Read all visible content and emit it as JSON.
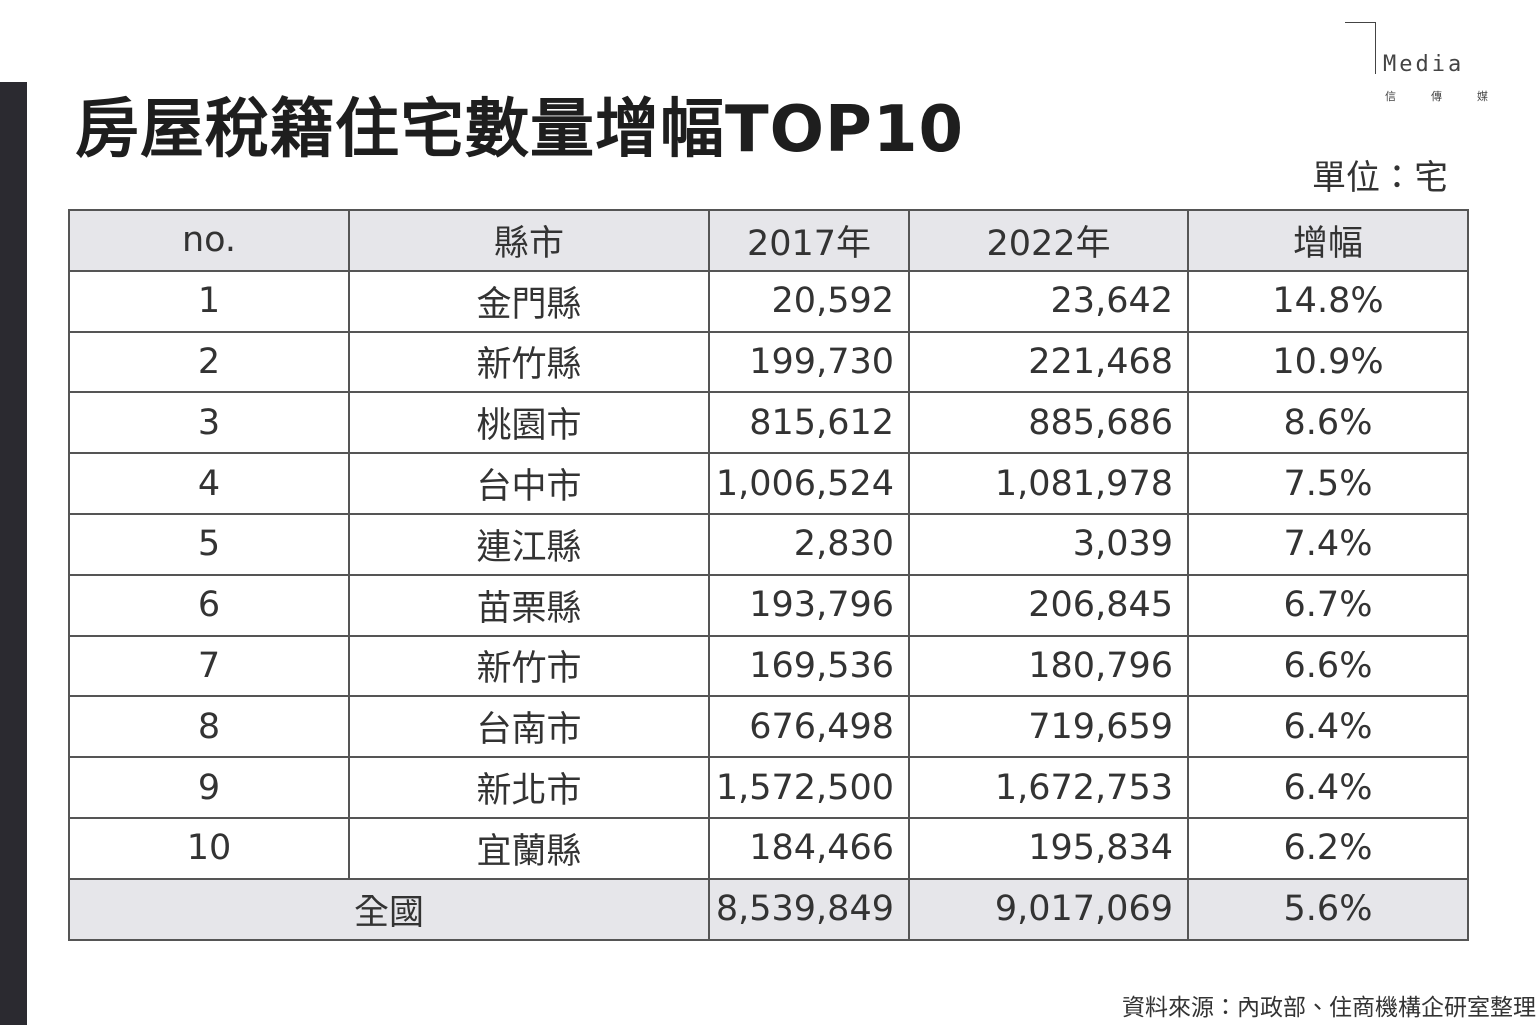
{
  "header": {
    "title": "房屋稅籍住宅數量增幅TOP10",
    "unit": "單位：宅",
    "logo": {
      "mark": "Media",
      "sub": "信傳媒"
    }
  },
  "table": {
    "columns": [
      "no.",
      "縣市",
      "2017年",
      "2022年",
      "增幅"
    ],
    "rows": [
      [
        "1",
        "金門縣",
        "20,592",
        "23,642",
        "14.8%"
      ],
      [
        "2",
        "新竹縣",
        "199,730",
        "221,468",
        "10.9%"
      ],
      [
        "3",
        "桃園市",
        "815,612",
        "885,686",
        "8.6%"
      ],
      [
        "4",
        "台中市",
        "1,006,524",
        "1,081,978",
        "7.5%"
      ],
      [
        "5",
        "連江縣",
        "2,830",
        "3,039",
        "7.4%"
      ],
      [
        "6",
        "苗栗縣",
        "193,796",
        "206,845",
        "6.7%"
      ],
      [
        "7",
        "新竹市",
        "169,536",
        "180,796",
        "6.6%"
      ],
      [
        "8",
        "台南市",
        "676,498",
        "719,659",
        "6.4%"
      ],
      [
        "9",
        "新北市",
        "1,572,500",
        "1,672,753",
        "6.4%"
      ],
      [
        "10",
        "宜蘭縣",
        "184,466",
        "195,834",
        "6.2%"
      ]
    ],
    "total": [
      "全國",
      "8,539,849",
      "9,017,069",
      "5.6%"
    ]
  },
  "footer": {
    "source": "資料來源：內政部、住商機構企研室整理"
  }
}
